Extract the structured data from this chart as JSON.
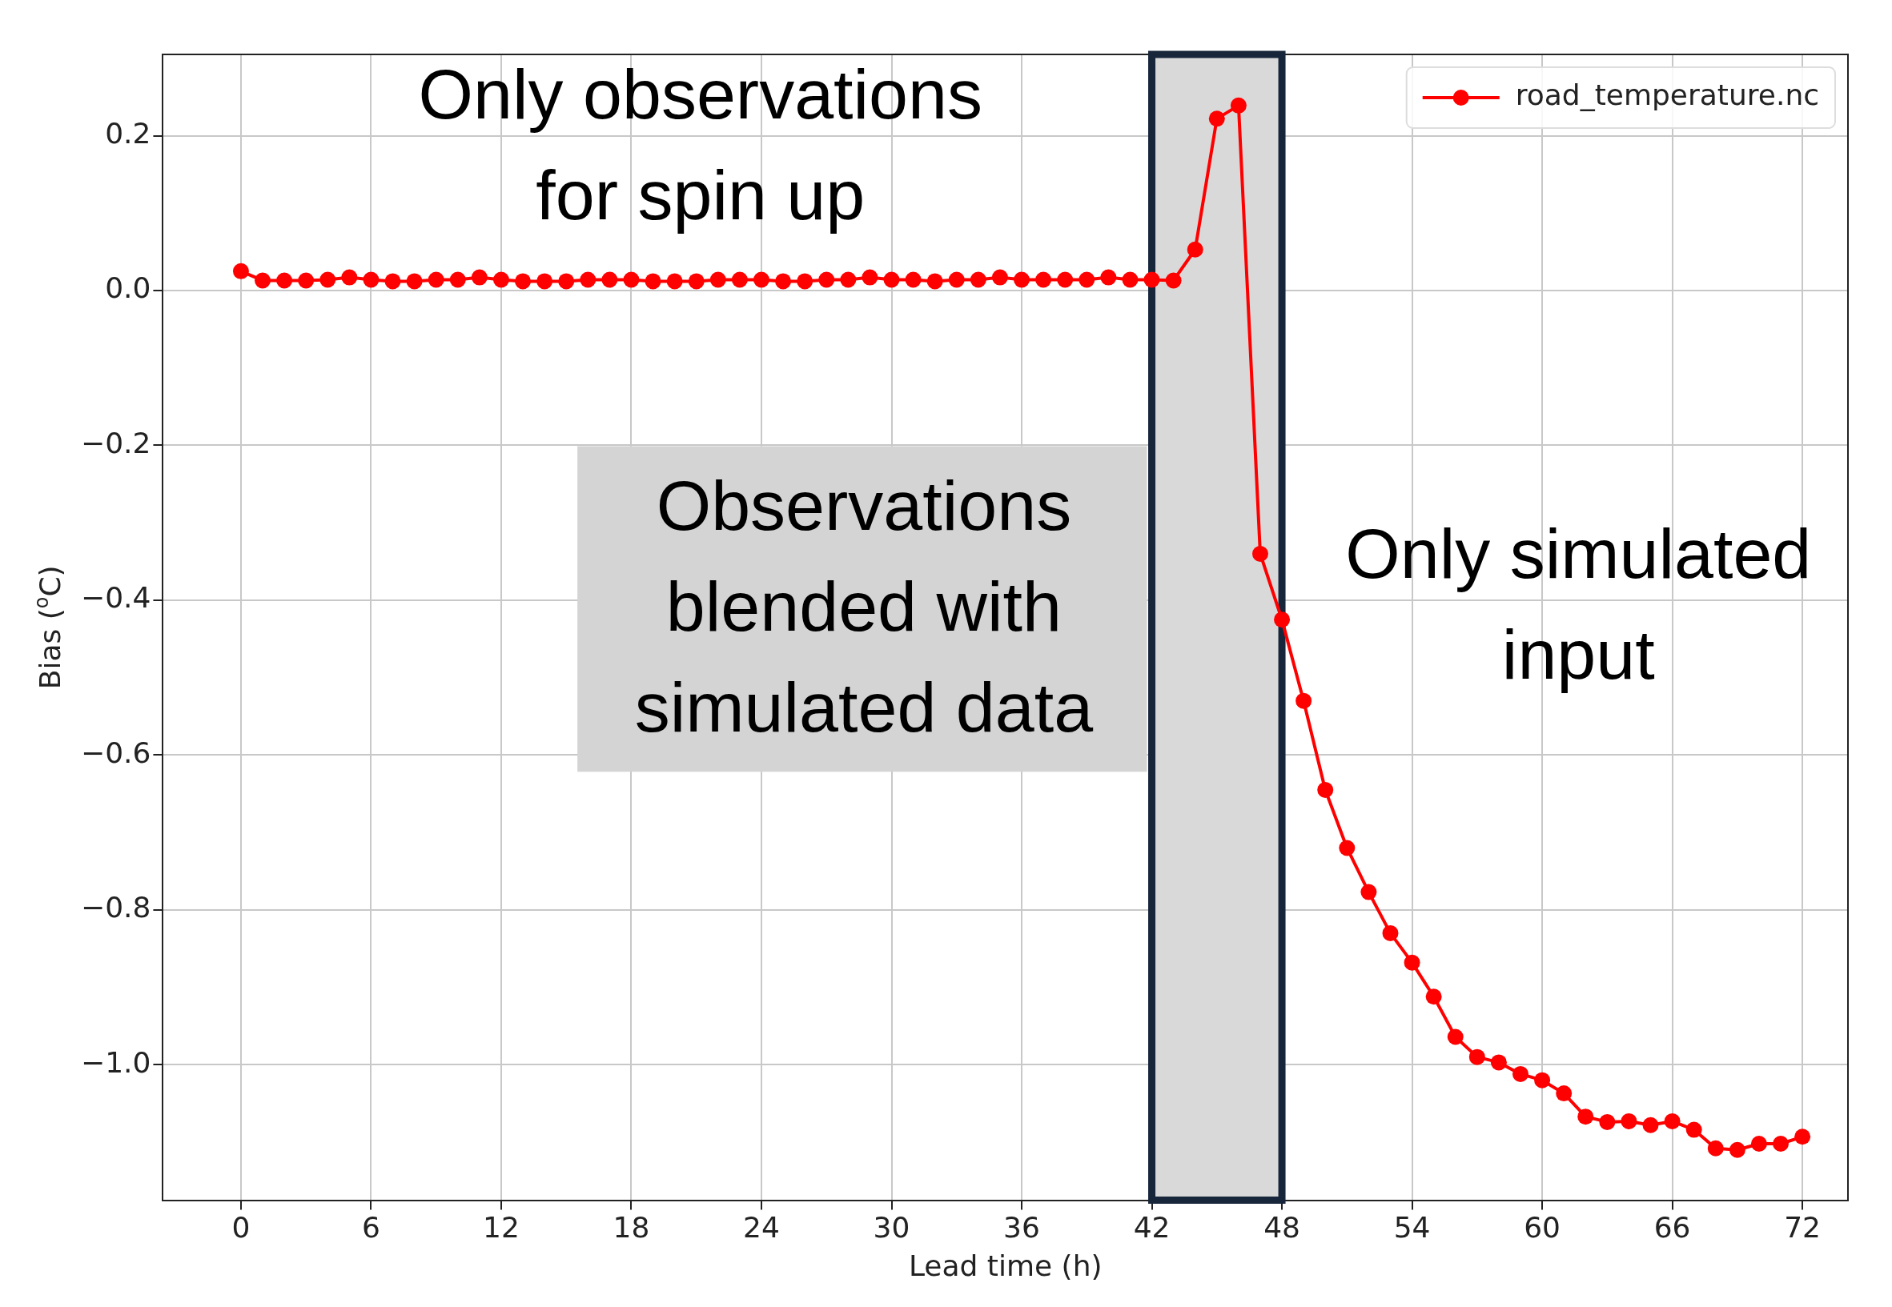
{
  "chart_data": {
    "type": "line",
    "xlabel": "Lead time (h)",
    "ylabel": "Bias ($^{o}$C)",
    "x": [
      0,
      1,
      2,
      3,
      4,
      5,
      6,
      7,
      8,
      9,
      10,
      11,
      12,
      13,
      14,
      15,
      16,
      17,
      18,
      19,
      20,
      21,
      22,
      23,
      24,
      25,
      26,
      27,
      28,
      29,
      30,
      31,
      32,
      33,
      34,
      35,
      36,
      37,
      38,
      39,
      40,
      41,
      42,
      43,
      44,
      45,
      46,
      47,
      48,
      49,
      50,
      51,
      52,
      53,
      54,
      55,
      56,
      57,
      58,
      59,
      60,
      61,
      62,
      63,
      64,
      65,
      66,
      67,
      68,
      69,
      70,
      71,
      72
    ],
    "series": [
      {
        "name": "road_temperature.nc",
        "color": "#ff0000",
        "values": [
          0.025,
          0.013,
          0.013,
          0.013,
          0.014,
          0.017,
          0.014,
          0.012,
          0.012,
          0.014,
          0.014,
          0.017,
          0.014,
          0.012,
          0.012,
          0.012,
          0.014,
          0.014,
          0.014,
          0.012,
          0.012,
          0.012,
          0.014,
          0.014,
          0.014,
          0.012,
          0.012,
          0.014,
          0.014,
          0.017,
          0.014,
          0.014,
          0.012,
          0.014,
          0.014,
          0.017,
          0.014,
          0.014,
          0.014,
          0.014,
          0.017,
          0.014,
          0.014,
          0.013,
          0.053,
          0.222,
          0.239,
          -0.34,
          -0.425,
          -0.53,
          -0.645,
          -0.72,
          -0.777,
          -0.83,
          -0.868,
          -0.912,
          -0.964,
          -0.99,
          -0.997,
          -1.012,
          -1.02,
          -1.037,
          -1.067,
          -1.074,
          -1.073,
          -1.078,
          -1.073,
          -1.084,
          -1.108,
          -1.11,
          -1.102,
          -1.102,
          -1.093
        ]
      }
    ],
    "xlim": [
      -3.6,
      74.1
    ],
    "ylim": [
      -1.175,
      0.305
    ],
    "xticks": [
      0,
      6,
      12,
      18,
      24,
      30,
      36,
      42,
      48,
      54,
      60,
      66,
      72
    ],
    "yticks": [
      {
        "value": 0.2,
        "label": "0.2"
      },
      {
        "value": 0,
        "label": "0.0"
      },
      {
        "value": -0.2,
        "label": "−0.2"
      },
      {
        "value": -0.4,
        "label": "−0.4"
      },
      {
        "value": -0.6,
        "label": "−0.6"
      },
      {
        "value": -0.8,
        "label": "−0.8"
      },
      {
        "value": -1,
        "label": "−1.0"
      }
    ],
    "bands": [
      {
        "axis": "x",
        "from": 42,
        "to": 48,
        "color": "#d9d9d9"
      }
    ],
    "annotations": [
      "Only observations for spin up",
      "Observations blended with simulated data",
      "Only simulated input"
    ],
    "grid": true,
    "legend": "top right",
    "marker": "circle",
    "line_style": "solid"
  }
}
